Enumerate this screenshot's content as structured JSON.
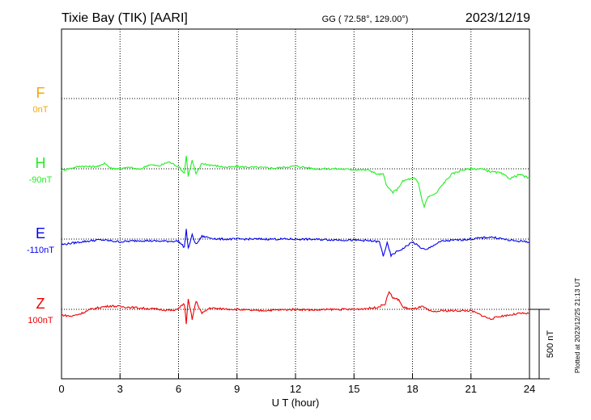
{
  "chart_data": {
    "type": "line",
    "title": "Tixie Bay (TIK)  [AARI]",
    "coords": "GG ( 72.58°, 129.00°)",
    "date": "2023/12/19",
    "xlabel": "U T (hour)",
    "xlim": [
      0,
      24
    ],
    "xticks": [
      "0",
      "3",
      "6",
      "9",
      "12",
      "15",
      "18",
      "21",
      "24"
    ],
    "grid": true,
    "scale_bar": {
      "label": "500 nT",
      "value_nT": 500
    },
    "plotted_note": "Plotted at 2023/12/25 21:13 UT",
    "series": [
      {
        "name": "F",
        "baseline": "0nT",
        "color": "#f5a800",
        "values": []
      },
      {
        "name": "H",
        "baseline": "-90nT",
        "color": "#22ee22",
        "points": [
          [
            0,
            -10
          ],
          [
            0.5,
            5
          ],
          [
            1,
            20
          ],
          [
            1.5,
            15
          ],
          [
            2,
            20
          ],
          [
            2.2,
            45
          ],
          [
            2.5,
            5
          ],
          [
            3,
            0
          ],
          [
            3.5,
            10
          ],
          [
            4,
            -5
          ],
          [
            4.5,
            30
          ],
          [
            5,
            20
          ],
          [
            5.5,
            50
          ],
          [
            6,
            15
          ],
          [
            6.3,
            -30
          ],
          [
            6.4,
            95
          ],
          [
            6.5,
            -50
          ],
          [
            6.7,
            60
          ],
          [
            6.9,
            -40
          ],
          [
            7.2,
            40
          ],
          [
            7.5,
            30
          ],
          [
            8,
            20
          ],
          [
            8.5,
            10
          ],
          [
            9,
            15
          ],
          [
            10,
            10
          ],
          [
            11,
            5
          ],
          [
            12,
            20
          ],
          [
            13,
            0
          ],
          [
            14,
            0
          ],
          [
            15,
            -5
          ],
          [
            15.8,
            -10
          ],
          [
            16.2,
            -40
          ],
          [
            16.5,
            -40
          ],
          [
            16.7,
            -130
          ],
          [
            17,
            -170
          ],
          [
            17.2,
            -150
          ],
          [
            17.5,
            -90
          ],
          [
            17.8,
            -75
          ],
          [
            18.1,
            -70
          ],
          [
            18.3,
            -100
          ],
          [
            18.5,
            -230
          ],
          [
            18.6,
            -270
          ],
          [
            18.8,
            -200
          ],
          [
            19.2,
            -180
          ],
          [
            19.5,
            -120
          ],
          [
            20,
            -40
          ],
          [
            20.5,
            -10
          ],
          [
            21,
            0
          ],
          [
            21.5,
            0
          ],
          [
            22,
            -20
          ],
          [
            22.5,
            -30
          ],
          [
            23,
            -70
          ],
          [
            23.5,
            -40
          ],
          [
            24,
            -70
          ]
        ]
      },
      {
        "name": "E",
        "baseline": "-110nT",
        "color": "#0000ee",
        "points": [
          [
            0,
            -40
          ],
          [
            1,
            -20
          ],
          [
            2,
            -5
          ],
          [
            3,
            -20
          ],
          [
            4,
            -10
          ],
          [
            5,
            -15
          ],
          [
            6,
            -15
          ],
          [
            6.3,
            -60
          ],
          [
            6.4,
            70
          ],
          [
            6.5,
            -70
          ],
          [
            6.7,
            30
          ],
          [
            6.9,
            -40
          ],
          [
            7.2,
            20
          ],
          [
            8,
            0
          ],
          [
            9,
            0
          ],
          [
            10,
            0
          ],
          [
            12,
            0
          ],
          [
            14,
            -5
          ],
          [
            15.5,
            -10
          ],
          [
            16,
            -15
          ],
          [
            16.3,
            -20
          ],
          [
            16.5,
            -120
          ],
          [
            16.7,
            -30
          ],
          [
            16.9,
            -120
          ],
          [
            17.2,
            -90
          ],
          [
            17.5,
            -70
          ],
          [
            17.8,
            -40
          ],
          [
            18,
            -20
          ],
          [
            18.4,
            -60
          ],
          [
            18.7,
            -80
          ],
          [
            19,
            -50
          ],
          [
            19.5,
            -15
          ],
          [
            20,
            -10
          ],
          [
            21,
            0
          ],
          [
            22,
            15
          ],
          [
            22.5,
            5
          ],
          [
            23,
            -10
          ],
          [
            24,
            -20
          ]
        ]
      },
      {
        "name": "Z",
        "baseline": "100nT",
        "color": "#ee0000",
        "points": [
          [
            0,
            -40
          ],
          [
            0.5,
            -50
          ],
          [
            1,
            -30
          ],
          [
            1.5,
            0
          ],
          [
            2,
            15
          ],
          [
            2.5,
            25
          ],
          [
            3,
            20
          ],
          [
            4,
            10
          ],
          [
            5,
            0
          ],
          [
            5.8,
            -10
          ],
          [
            6.3,
            40
          ],
          [
            6.4,
            -100
          ],
          [
            6.5,
            70
          ],
          [
            6.7,
            -70
          ],
          [
            6.9,
            60
          ],
          [
            7.2,
            -30
          ],
          [
            7.6,
            10
          ],
          [
            8,
            5
          ],
          [
            9,
            0
          ],
          [
            10,
            -10
          ],
          [
            11,
            -5
          ],
          [
            12,
            0
          ],
          [
            13,
            -5
          ],
          [
            14,
            0
          ],
          [
            15,
            0
          ],
          [
            16,
            10
          ],
          [
            16.3,
            20
          ],
          [
            16.6,
            40
          ],
          [
            16.8,
            130
          ],
          [
            17,
            80
          ],
          [
            17.3,
            70
          ],
          [
            17.5,
            15
          ],
          [
            18,
            0
          ],
          [
            18.5,
            20
          ],
          [
            19,
            -20
          ],
          [
            19.5,
            -10
          ],
          [
            20,
            -10
          ],
          [
            21,
            -10
          ],
          [
            21.5,
            -40
          ],
          [
            22,
            -70
          ],
          [
            22.5,
            -50
          ],
          [
            23,
            -40
          ],
          [
            23.5,
            -30
          ],
          [
            24,
            -30
          ]
        ]
      }
    ]
  }
}
